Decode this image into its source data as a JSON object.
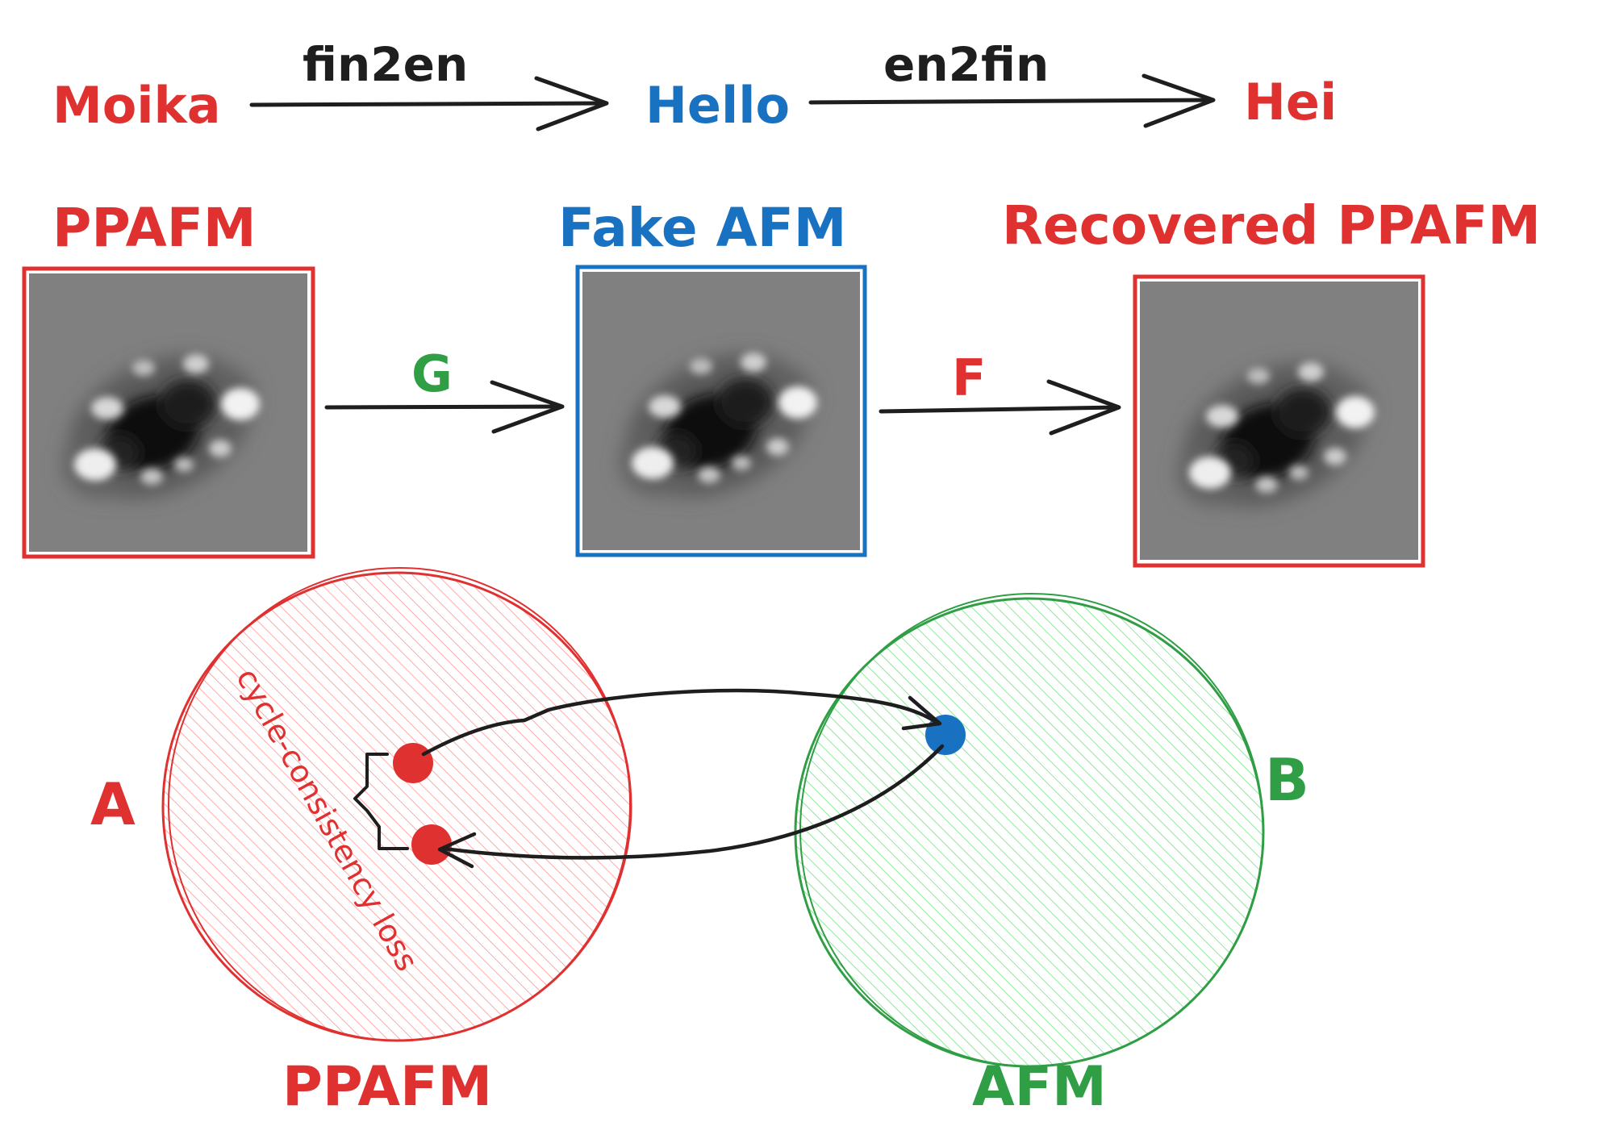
{
  "colors": {
    "red": "#e03131",
    "blue": "#1971c2",
    "green": "#2f9e44",
    "black": "#1e1e1e",
    "image_background": "#808080"
  },
  "translation_row": {
    "source_word": "Moika",
    "forward_label": "fin2en",
    "middle_word": "Hello",
    "backward_label": "en2fin",
    "result_word": "Hei"
  },
  "image_row": {
    "panels": [
      {
        "title": "PPAFM",
        "frame_color": "red"
      },
      {
        "title": "Fake AFM",
        "frame_color": "blue"
      },
      {
        "title": "Recovered PPAFM",
        "frame_color": "red"
      }
    ],
    "arrow_labels": {
      "generator": "G",
      "inverse": "F"
    }
  },
  "domains": {
    "left": {
      "letter": "A",
      "caption": "PPAFM",
      "color": "red"
    },
    "right": {
      "letter": "B",
      "caption": "AFM",
      "color": "green"
    },
    "loss_label": "cycle-consistency loss"
  },
  "icons": {
    "forward_arrow": "arrow-right-icon",
    "cycle_arrow": "curved-arrow-icon",
    "loss_bracket": "brace-icon"
  }
}
